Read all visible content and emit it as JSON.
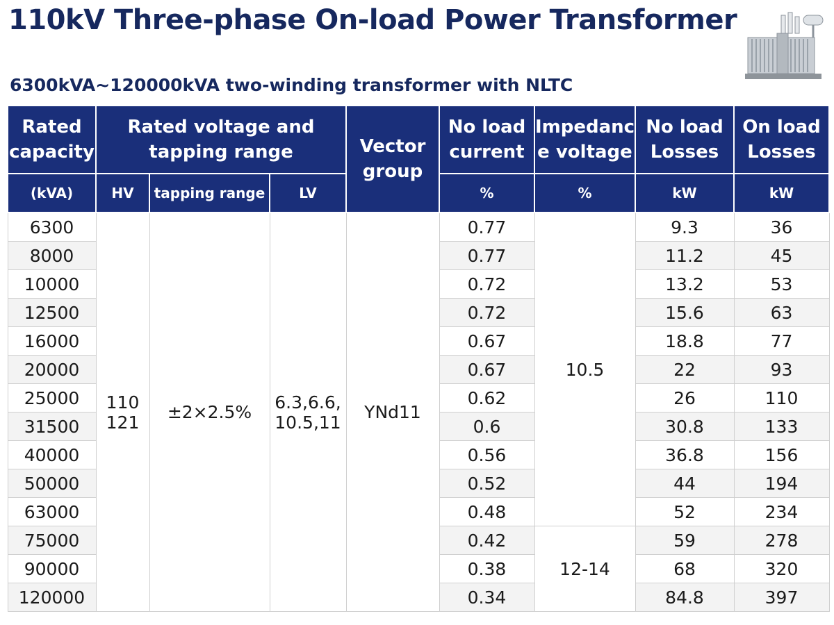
{
  "title": "110kV Three-phase On-load Power Transformer",
  "subtitle": "6300kVA~120000kVA two-winding transformer with NLTC",
  "table": {
    "headers": {
      "rated_capacity": "Rated capacity",
      "rated_voltage": "Rated voltage and tapping range",
      "vector_group": "Vector group",
      "no_load_current": "No load current",
      "impedance_voltage": "Impedanc e voltage",
      "no_load_losses": "No load Losses",
      "on_load_losses": "On load Losses"
    },
    "units": {
      "capacity": "(kVA)",
      "hv": "HV",
      "tapping": "tapping range",
      "lv": "LV",
      "current": "%",
      "impedance": "%",
      "no_load_losses": "kW",
      "on_load_losses": "kW"
    },
    "merged": {
      "hv": [
        "110",
        "121"
      ],
      "tapping": "±2×2.5%",
      "lv": [
        "6.3,6.6,",
        "10.5,11"
      ],
      "vector_group": "YNd11",
      "impedance_a": "10.5",
      "impedance_b": "12-14"
    },
    "rows": [
      {
        "capacity": "6300",
        "current": "0.77",
        "no_load": "9.3",
        "on_load": "36"
      },
      {
        "capacity": "8000",
        "current": "0.77",
        "no_load": "11.2",
        "on_load": "45"
      },
      {
        "capacity": "10000",
        "current": "0.72",
        "no_load": "13.2",
        "on_load": "53"
      },
      {
        "capacity": "12500",
        "current": "0.72",
        "no_load": "15.6",
        "on_load": "63"
      },
      {
        "capacity": "16000",
        "current": "0.67",
        "no_load": "18.8",
        "on_load": "77"
      },
      {
        "capacity": "20000",
        "current": "0.67",
        "no_load": "22",
        "on_load": "93"
      },
      {
        "capacity": "25000",
        "current": "0.62",
        "no_load": "26",
        "on_load": "110"
      },
      {
        "capacity": "31500",
        "current": "0.6",
        "no_load": "30.8",
        "on_load": "133"
      },
      {
        "capacity": "40000",
        "current": "0.56",
        "no_load": "36.8",
        "on_load": "156"
      },
      {
        "capacity": "50000",
        "current": "0.52",
        "no_load": "44",
        "on_load": "194"
      },
      {
        "capacity": "63000",
        "current": "0.48",
        "no_load": "52",
        "on_load": "234"
      },
      {
        "capacity": "75000",
        "current": "0.42",
        "no_load": "59",
        "on_load": "278"
      },
      {
        "capacity": "90000",
        "current": "0.38",
        "no_load": "68",
        "on_load": "320"
      },
      {
        "capacity": "120000",
        "current": "0.34",
        "no_load": "84.8",
        "on_load": "397"
      }
    ]
  },
  "colors": {
    "header_bg": "#1a2f7a",
    "title": "#16285e",
    "zebra": "#f3f3f3"
  },
  "icon": "transformer-image"
}
